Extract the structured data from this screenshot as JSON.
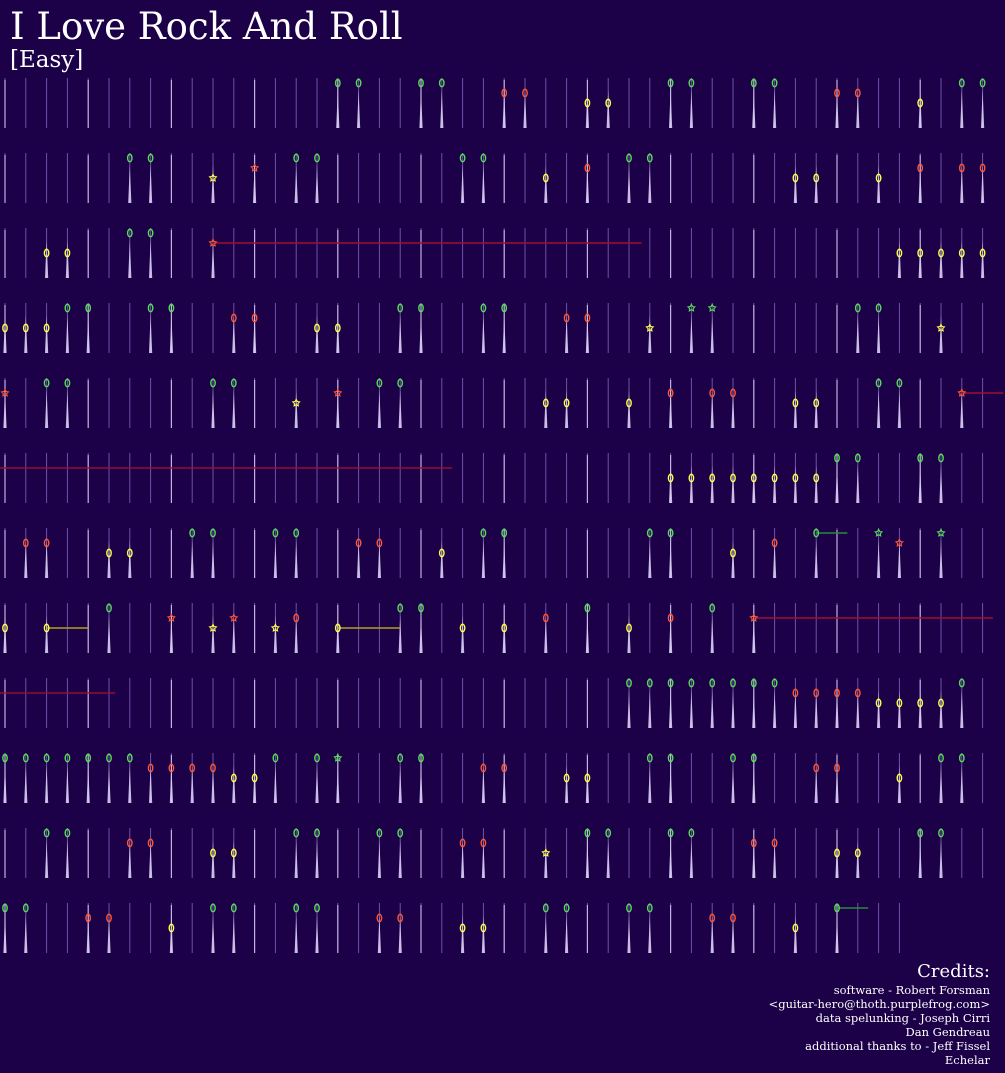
{
  "song": {
    "title": "I Love Rock And Roll",
    "difficulty": "[Easy]"
  },
  "colors": {
    "background": "#1c0048",
    "green": "#55dd55",
    "red": "#ff5533",
    "yellow": "#ffff44",
    "beat_line": "#6e52a8",
    "measure_line": "#d8cdf2"
  },
  "credits": {
    "heading": "Credits:",
    "lines": [
      "software - Robert Forsman",
      "<guitar-hero@thoth.purplefrog.com>",
      "data spelunking - Joseph Cirri",
      "Dan Gendreau",
      "additional thanks to - Jeff Fissel",
      "Echelar"
    ]
  },
  "rows": [
    {
      "notes": [
        {
          "b": 16,
          "c": "g",
          "s": "o"
        },
        {
          "b": 17,
          "c": "g",
          "s": "o"
        },
        {
          "b": 20,
          "c": "g",
          "s": "o"
        },
        {
          "b": 21,
          "c": "g",
          "s": "o"
        },
        {
          "b": 24,
          "c": "r",
          "s": "o"
        },
        {
          "b": 25,
          "c": "r",
          "s": "o"
        },
        {
          "b": 28,
          "c": "y",
          "s": "o"
        },
        {
          "b": 29,
          "c": "y",
          "s": "o"
        },
        {
          "b": 32,
          "c": "g",
          "s": "o"
        },
        {
          "b": 33,
          "c": "g",
          "s": "o"
        },
        {
          "b": 36,
          "c": "g",
          "s": "o"
        },
        {
          "b": 37,
          "c": "g",
          "s": "o"
        },
        {
          "b": 40,
          "c": "r",
          "s": "o"
        },
        {
          "b": 41,
          "c": "r",
          "s": "o"
        },
        {
          "b": 44,
          "c": "y",
          "s": "o"
        },
        {
          "b": 46,
          "c": "g",
          "s": "o"
        },
        {
          "b": 47,
          "c": "g",
          "s": "o"
        }
      ]
    },
    {
      "notes": [
        {
          "b": 6,
          "c": "g",
          "s": "o"
        },
        {
          "b": 7,
          "c": "g",
          "s": "o"
        },
        {
          "b": 10,
          "c": "y",
          "s": "s"
        },
        {
          "b": 12,
          "c": "r",
          "s": "s"
        },
        {
          "b": 14,
          "c": "g",
          "s": "o"
        },
        {
          "b": 15,
          "c": "g",
          "s": "o"
        },
        {
          "b": 22,
          "c": "g",
          "s": "o"
        },
        {
          "b": 23,
          "c": "g",
          "s": "o"
        },
        {
          "b": 26,
          "c": "y",
          "s": "o"
        },
        {
          "b": 28,
          "c": "r",
          "s": "o"
        },
        {
          "b": 30,
          "c": "g",
          "s": "o"
        },
        {
          "b": 31,
          "c": "g",
          "s": "o"
        },
        {
          "b": 38,
          "c": "y",
          "s": "o"
        },
        {
          "b": 39,
          "c": "y",
          "s": "o"
        },
        {
          "b": 42,
          "c": "y",
          "s": "o"
        },
        {
          "b": 44,
          "c": "r",
          "s": "o"
        },
        {
          "b": 46,
          "c": "r",
          "s": "o"
        },
        {
          "b": 47,
          "c": "r",
          "s": "o"
        }
      ]
    },
    {
      "notes": [
        {
          "b": 2,
          "c": "y",
          "s": "o"
        },
        {
          "b": 3,
          "c": "y",
          "s": "o"
        },
        {
          "b": 6,
          "c": "g",
          "s": "o"
        },
        {
          "b": 7,
          "c": "g",
          "s": "o"
        },
        {
          "b": 10,
          "c": "r",
          "s": "s",
          "sustain": 20.6
        },
        {
          "b": 43,
          "c": "y",
          "s": "o"
        },
        {
          "b": 44,
          "c": "y",
          "s": "o"
        },
        {
          "b": 45,
          "c": "y",
          "s": "o"
        },
        {
          "b": 46,
          "c": "y",
          "s": "o"
        },
        {
          "b": 47,
          "c": "y",
          "s": "o"
        }
      ]
    },
    {
      "notes": [
        {
          "b": 0,
          "c": "y",
          "s": "o"
        },
        {
          "b": 1,
          "c": "y",
          "s": "o"
        },
        {
          "b": 2,
          "c": "y",
          "s": "o"
        },
        {
          "b": 3,
          "c": "g",
          "s": "o"
        },
        {
          "b": 4,
          "c": "g",
          "s": "o"
        },
        {
          "b": 7,
          "c": "g",
          "s": "o"
        },
        {
          "b": 8,
          "c": "g",
          "s": "o"
        },
        {
          "b": 11,
          "c": "r",
          "s": "o"
        },
        {
          "b": 12,
          "c": "r",
          "s": "o"
        },
        {
          "b": 15,
          "c": "y",
          "s": "o"
        },
        {
          "b": 16,
          "c": "y",
          "s": "o"
        },
        {
          "b": 19,
          "c": "g",
          "s": "o"
        },
        {
          "b": 20,
          "c": "g",
          "s": "o"
        },
        {
          "b": 23,
          "c": "g",
          "s": "o"
        },
        {
          "b": 24,
          "c": "g",
          "s": "o"
        },
        {
          "b": 27,
          "c": "r",
          "s": "o"
        },
        {
          "b": 28,
          "c": "r",
          "s": "o"
        },
        {
          "b": 31,
          "c": "y",
          "s": "s"
        },
        {
          "b": 33,
          "c": "g",
          "s": "s"
        },
        {
          "b": 34,
          "c": "g",
          "s": "s"
        },
        {
          "b": 41,
          "c": "g",
          "s": "o"
        },
        {
          "b": 42,
          "c": "g",
          "s": "o"
        },
        {
          "b": 45,
          "c": "y",
          "s": "s"
        }
      ]
    },
    {
      "notes": [
        {
          "b": 0,
          "c": "r",
          "s": "s"
        },
        {
          "b": 2,
          "c": "g",
          "s": "o"
        },
        {
          "b": 3,
          "c": "g",
          "s": "o"
        },
        {
          "b": 10,
          "c": "g",
          "s": "o"
        },
        {
          "b": 11,
          "c": "g",
          "s": "o"
        },
        {
          "b": 14,
          "c": "y",
          "s": "s"
        },
        {
          "b": 16,
          "c": "r",
          "s": "s"
        },
        {
          "b": 18,
          "c": "g",
          "s": "o"
        },
        {
          "b": 19,
          "c": "g",
          "s": "o"
        },
        {
          "b": 26,
          "c": "y",
          "s": "o"
        },
        {
          "b": 27,
          "c": "y",
          "s": "o"
        },
        {
          "b": 30,
          "c": "y",
          "s": "o"
        },
        {
          "b": 32,
          "c": "r",
          "s": "o"
        },
        {
          "b": 34,
          "c": "r",
          "s": "o"
        },
        {
          "b": 35,
          "c": "r",
          "s": "o"
        },
        {
          "b": 38,
          "c": "y",
          "s": "o"
        },
        {
          "b": 39,
          "c": "y",
          "s": "o"
        },
        {
          "b": 42,
          "c": "g",
          "s": "o"
        },
        {
          "b": 43,
          "c": "g",
          "s": "o"
        },
        {
          "b": 46,
          "c": "r",
          "s": "s",
          "sustain": 2
        }
      ]
    },
    {
      "sustains": [
        {
          "b": 0,
          "len": 21.5,
          "c": "r"
        }
      ],
      "notes": [
        {
          "b": 32,
          "c": "y",
          "s": "o"
        },
        {
          "b": 33,
          "c": "y",
          "s": "o"
        },
        {
          "b": 34,
          "c": "y",
          "s": "o"
        },
        {
          "b": 35,
          "c": "y",
          "s": "o"
        },
        {
          "b": 36,
          "c": "y",
          "s": "o"
        },
        {
          "b": 37,
          "c": "y",
          "s": "o"
        },
        {
          "b": 38,
          "c": "y",
          "s": "o"
        },
        {
          "b": 39,
          "c": "y",
          "s": "o"
        },
        {
          "b": 40,
          "c": "g",
          "s": "o"
        },
        {
          "b": 41,
          "c": "g",
          "s": "o"
        },
        {
          "b": 44,
          "c": "g",
          "s": "o"
        },
        {
          "b": 45,
          "c": "g",
          "s": "o"
        }
      ]
    },
    {
      "notes": [
        {
          "b": 1,
          "c": "r",
          "s": "o"
        },
        {
          "b": 2,
          "c": "r",
          "s": "o"
        },
        {
          "b": 5,
          "c": "y",
          "s": "o"
        },
        {
          "b": 6,
          "c": "y",
          "s": "o"
        },
        {
          "b": 9,
          "c": "g",
          "s": "o"
        },
        {
          "b": 10,
          "c": "g",
          "s": "o"
        },
        {
          "b": 13,
          "c": "g",
          "s": "o"
        },
        {
          "b": 14,
          "c": "g",
          "s": "o"
        },
        {
          "b": 17,
          "c": "r",
          "s": "o"
        },
        {
          "b": 18,
          "c": "r",
          "s": "o"
        },
        {
          "b": 21,
          "c": "y",
          "s": "o"
        },
        {
          "b": 23,
          "c": "g",
          "s": "o"
        },
        {
          "b": 24,
          "c": "g",
          "s": "o"
        },
        {
          "b": 31,
          "c": "g",
          "s": "o"
        },
        {
          "b": 32,
          "c": "g",
          "s": "o"
        },
        {
          "b": 35,
          "c": "y",
          "s": "o"
        },
        {
          "b": 37,
          "c": "r",
          "s": "o"
        },
        {
          "b": 39,
          "c": "g",
          "s": "o",
          "sustain": 1.5
        },
        {
          "b": 42,
          "c": "g",
          "s": "s"
        },
        {
          "b": 43,
          "c": "r",
          "s": "s"
        },
        {
          "b": 45,
          "c": "g",
          "s": "s"
        }
      ]
    },
    {
      "notes": [
        {
          "b": 0,
          "c": "y",
          "s": "o"
        },
        {
          "b": 2,
          "c": "y",
          "s": "o",
          "sustain": 2
        },
        {
          "b": 5,
          "c": "g",
          "s": "o"
        },
        {
          "b": 8,
          "c": "r",
          "s": "s"
        },
        {
          "b": 10,
          "c": "y",
          "s": "s"
        },
        {
          "b": 11,
          "c": "r",
          "s": "s"
        },
        {
          "b": 13,
          "c": "y",
          "s": "s"
        },
        {
          "b": 14,
          "c": "r",
          "s": "o"
        },
        {
          "b": 16,
          "c": "y",
          "s": "o",
          "sustain": 3
        },
        {
          "b": 19,
          "c": "g",
          "s": "o"
        },
        {
          "b": 20,
          "c": "g",
          "s": "o"
        },
        {
          "b": 22,
          "c": "y",
          "s": "o"
        },
        {
          "b": 24,
          "c": "y",
          "s": "o"
        },
        {
          "b": 26,
          "c": "r",
          "s": "o"
        },
        {
          "b": 28,
          "c": "g",
          "s": "o"
        },
        {
          "b": 30,
          "c": "y",
          "s": "o"
        },
        {
          "b": 32,
          "c": "r",
          "s": "o"
        },
        {
          "b": 34,
          "c": "g",
          "s": "o"
        },
        {
          "b": 36,
          "c": "r",
          "s": "s",
          "sustain": 11.5
        }
      ]
    },
    {
      "sustains": [
        {
          "b": 0,
          "len": 5.3,
          "c": "r"
        }
      ],
      "notes": [
        {
          "b": 30,
          "c": "g",
          "s": "o"
        },
        {
          "b": 31,
          "c": "g",
          "s": "o"
        },
        {
          "b": 32,
          "c": "g",
          "s": "o"
        },
        {
          "b": 33,
          "c": "g",
          "s": "o"
        },
        {
          "b": 34,
          "c": "g",
          "s": "o"
        },
        {
          "b": 35,
          "c": "g",
          "s": "o"
        },
        {
          "b": 36,
          "c": "g",
          "s": "o"
        },
        {
          "b": 37,
          "c": "g",
          "s": "o"
        },
        {
          "b": 38,
          "c": "r",
          "s": "o"
        },
        {
          "b": 39,
          "c": "r",
          "s": "o"
        },
        {
          "b": 40,
          "c": "r",
          "s": "o"
        },
        {
          "b": 41,
          "c": "r",
          "s": "o"
        },
        {
          "b": 42,
          "c": "y",
          "s": "o"
        },
        {
          "b": 43,
          "c": "y",
          "s": "o"
        },
        {
          "b": 44,
          "c": "y",
          "s": "o"
        },
        {
          "b": 45,
          "c": "y",
          "s": "o"
        },
        {
          "b": 46,
          "c": "g",
          "s": "o"
        }
      ]
    },
    {
      "notes": [
        {
          "b": 0,
          "c": "g",
          "s": "o"
        },
        {
          "b": 1,
          "c": "g",
          "s": "o"
        },
        {
          "b": 2,
          "c": "g",
          "s": "o"
        },
        {
          "b": 3,
          "c": "g",
          "s": "o"
        },
        {
          "b": 4,
          "c": "g",
          "s": "o"
        },
        {
          "b": 5,
          "c": "g",
          "s": "o"
        },
        {
          "b": 6,
          "c": "g",
          "s": "o"
        },
        {
          "b": 7,
          "c": "r",
          "s": "o"
        },
        {
          "b": 8,
          "c": "r",
          "s": "o"
        },
        {
          "b": 9,
          "c": "r",
          "s": "o"
        },
        {
          "b": 10,
          "c": "r",
          "s": "o"
        },
        {
          "b": 11,
          "c": "y",
          "s": "o"
        },
        {
          "b": 12,
          "c": "y",
          "s": "o"
        },
        {
          "b": 13,
          "c": "g",
          "s": "o"
        },
        {
          "b": 15,
          "c": "g",
          "s": "o"
        },
        {
          "b": 16,
          "c": "g",
          "s": "s"
        },
        {
          "b": 19,
          "c": "g",
          "s": "o"
        },
        {
          "b": 20,
          "c": "g",
          "s": "o"
        },
        {
          "b": 23,
          "c": "r",
          "s": "o"
        },
        {
          "b": 24,
          "c": "r",
          "s": "o"
        },
        {
          "b": 27,
          "c": "y",
          "s": "o"
        },
        {
          "b": 28,
          "c": "y",
          "s": "o"
        },
        {
          "b": 31,
          "c": "g",
          "s": "o"
        },
        {
          "b": 32,
          "c": "g",
          "s": "o"
        },
        {
          "b": 35,
          "c": "g",
          "s": "o"
        },
        {
          "b": 36,
          "c": "g",
          "s": "o"
        },
        {
          "b": 39,
          "c": "r",
          "s": "o"
        },
        {
          "b": 40,
          "c": "r",
          "s": "o"
        },
        {
          "b": 43,
          "c": "y",
          "s": "o"
        },
        {
          "b": 45,
          "c": "g",
          "s": "o"
        },
        {
          "b": 46,
          "c": "g",
          "s": "o"
        }
      ]
    },
    {
      "notes": [
        {
          "b": 2,
          "c": "g",
          "s": "o"
        },
        {
          "b": 3,
          "c": "g",
          "s": "o"
        },
        {
          "b": 6,
          "c": "r",
          "s": "o"
        },
        {
          "b": 7,
          "c": "r",
          "s": "o"
        },
        {
          "b": 10,
          "c": "y",
          "s": "o"
        },
        {
          "b": 11,
          "c": "y",
          "s": "o"
        },
        {
          "b": 14,
          "c": "g",
          "s": "o"
        },
        {
          "b": 15,
          "c": "g",
          "s": "o"
        },
        {
          "b": 18,
          "c": "g",
          "s": "o"
        },
        {
          "b": 19,
          "c": "g",
          "s": "o"
        },
        {
          "b": 22,
          "c": "r",
          "s": "o"
        },
        {
          "b": 23,
          "c": "r",
          "s": "o"
        },
        {
          "b": 26,
          "c": "y",
          "s": "s"
        },
        {
          "b": 28,
          "c": "g",
          "s": "o"
        },
        {
          "b": 29,
          "c": "g",
          "s": "o"
        },
        {
          "b": 32,
          "c": "g",
          "s": "o"
        },
        {
          "b": 33,
          "c": "g",
          "s": "o"
        },
        {
          "b": 36,
          "c": "r",
          "s": "o"
        },
        {
          "b": 37,
          "c": "r",
          "s": "o"
        },
        {
          "b": 40,
          "c": "y",
          "s": "o"
        },
        {
          "b": 41,
          "c": "y",
          "s": "o"
        },
        {
          "b": 44,
          "c": "g",
          "s": "o"
        },
        {
          "b": 45,
          "c": "g",
          "s": "o"
        }
      ]
    },
    {
      "beats": 44,
      "notes": [
        {
          "b": 0,
          "c": "g",
          "s": "o"
        },
        {
          "b": 1,
          "c": "g",
          "s": "o"
        },
        {
          "b": 4,
          "c": "r",
          "s": "o"
        },
        {
          "b": 5,
          "c": "r",
          "s": "o"
        },
        {
          "b": 8,
          "c": "y",
          "s": "o"
        },
        {
          "b": 10,
          "c": "g",
          "s": "o"
        },
        {
          "b": 11,
          "c": "g",
          "s": "o"
        },
        {
          "b": 14,
          "c": "g",
          "s": "o"
        },
        {
          "b": 15,
          "c": "g",
          "s": "o"
        },
        {
          "b": 18,
          "c": "r",
          "s": "o"
        },
        {
          "b": 19,
          "c": "r",
          "s": "o"
        },
        {
          "b": 22,
          "c": "y",
          "s": "o"
        },
        {
          "b": 23,
          "c": "y",
          "s": "o"
        },
        {
          "b": 26,
          "c": "g",
          "s": "o"
        },
        {
          "b": 27,
          "c": "g",
          "s": "o"
        },
        {
          "b": 30,
          "c": "g",
          "s": "o"
        },
        {
          "b": 31,
          "c": "g",
          "s": "o"
        },
        {
          "b": 34,
          "c": "r",
          "s": "o"
        },
        {
          "b": 35,
          "c": "r",
          "s": "o"
        },
        {
          "b": 38,
          "c": "y",
          "s": "o"
        },
        {
          "b": 40,
          "c": "g",
          "s": "o",
          "sustain": 1.5
        }
      ]
    }
  ]
}
